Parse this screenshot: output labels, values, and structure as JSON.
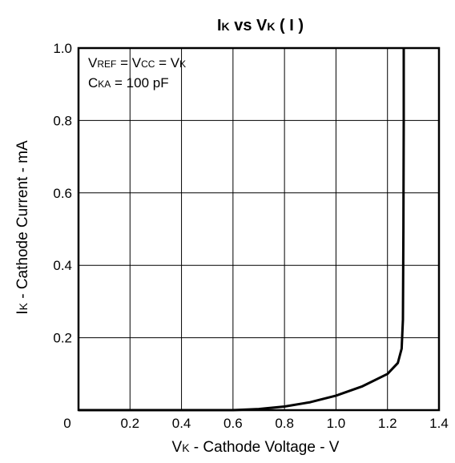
{
  "chart_data": {
    "type": "line",
    "title": {
      "main": "I",
      "sub": "K",
      "mid": " vs V",
      "sub2": "K",
      "tail": " ( I )"
    },
    "xlabel": {
      "main": "V",
      "sub": "K",
      "tail": " - Cathode Voltage - V"
    },
    "ylabel": {
      "main": "I",
      "sub": "K",
      "tail": " - Cathode Current - mA"
    },
    "xlim": [
      0,
      1.4
    ],
    "ylim": [
      0,
      1.0
    ],
    "x_ticks": [
      "0",
      "0.2",
      "0.4",
      "0.6",
      "0.8",
      "1.0",
      "1.2",
      "1.4"
    ],
    "x_tick_values": [
      0,
      0.2,
      0.4,
      0.6,
      0.8,
      1.0,
      1.2,
      1.4
    ],
    "y_ticks": [
      "0.2",
      "0.4",
      "0.6",
      "0.8",
      "1.0"
    ],
    "y_tick_values": [
      0.2,
      0.4,
      0.6,
      0.8,
      1.0
    ],
    "grid": true,
    "annotations": {
      "line1": {
        "a": "V",
        "a_sub": "REF",
        "b": " = V",
        "b_sub": "CC",
        "c": " = V",
        "c_sub": "K"
      },
      "line2": {
        "a": "C",
        "a_sub": "KA",
        "b": " = 100 pF"
      }
    },
    "series": [
      {
        "x": [
          0,
          0.6,
          0.7,
          0.8,
          0.9,
          1.0,
          1.1,
          1.2,
          1.24,
          1.255,
          1.26,
          1.262,
          1.263,
          1.263
        ],
        "y": [
          0,
          0,
          0.003,
          0.01,
          0.022,
          0.04,
          0.065,
          0.1,
          0.13,
          0.17,
          0.25,
          0.5,
          0.8,
          1.0
        ]
      }
    ]
  }
}
